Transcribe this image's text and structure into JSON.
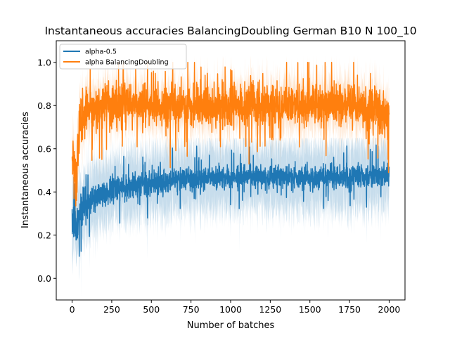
{
  "chart_data": {
    "type": "line",
    "title": "Instantaneous accuracies BalancingDoubling German B10 N 100_10",
    "xlabel": "Number of batches",
    "ylabel": "Instantaneous accuracies",
    "xlim": [
      -100,
      2100
    ],
    "ylim": [
      -0.1,
      1.1
    ],
    "xticks": [
      0,
      250,
      500,
      750,
      1000,
      1250,
      1500,
      1750,
      2000
    ],
    "xtick_labels": [
      "0",
      "250",
      "500",
      "750",
      "1000",
      "1250",
      "1500",
      "1750",
      "2000"
    ],
    "yticks": [
      0.0,
      0.2,
      0.4,
      0.6,
      0.8,
      1.0
    ],
    "ytick_labels": [
      "0.0",
      "0.2",
      "0.4",
      "0.6",
      "0.8",
      "1.0"
    ],
    "grid": false,
    "legend_position": "top-left",
    "n_batches": 2000,
    "series": [
      {
        "name": "alpha-0.5",
        "color": "#1f77b4",
        "mean_by_x": {
          "x": [
            0,
            25,
            50,
            100,
            150,
            200,
            300,
            500,
            750,
            1000,
            1250,
            1500,
            1750,
            2000
          ],
          "y": [
            0.3,
            0.22,
            0.32,
            0.34,
            0.38,
            0.4,
            0.42,
            0.44,
            0.46,
            0.47,
            0.47,
            0.47,
            0.47,
            0.48
          ]
        },
        "spread_by_x": {
          "x": [
            0,
            25,
            50,
            100,
            150,
            200,
            300,
            500,
            750,
            1000,
            1250,
            1500,
            1750,
            2000
          ],
          "y": [
            0.1,
            0.08,
            0.07,
            0.06,
            0.05,
            0.05,
            0.05,
            0.05,
            0.045,
            0.045,
            0.045,
            0.045,
            0.045,
            0.045
          ]
        },
        "band_halfwidth": 0.15,
        "extremes": {
          "min": 0.1,
          "max": 0.62
        }
      },
      {
        "name": "alpha BalancingDoubling",
        "color": "#ff7f0e",
        "mean_by_x": {
          "x": [
            0,
            25,
            50,
            100,
            150,
            200,
            300,
            500,
            750,
            1000,
            1250,
            1500,
            1750,
            2000
          ],
          "y": [
            0.55,
            0.45,
            0.75,
            0.8,
            0.8,
            0.8,
            0.8,
            0.8,
            0.8,
            0.8,
            0.8,
            0.8,
            0.8,
            0.75
          ]
        },
        "spread_by_x": {
          "x": [
            0,
            25,
            50,
            100,
            150,
            200,
            300,
            500,
            750,
            1000,
            1250,
            1500,
            1750,
            2000
          ],
          "y": [
            0.12,
            0.12,
            0.09,
            0.08,
            0.08,
            0.08,
            0.08,
            0.08,
            0.08,
            0.08,
            0.08,
            0.08,
            0.08,
            0.09
          ]
        },
        "band_halfwidth": 0.1,
        "extremes": {
          "min": 0.3,
          "max": 1.0
        }
      }
    ]
  }
}
